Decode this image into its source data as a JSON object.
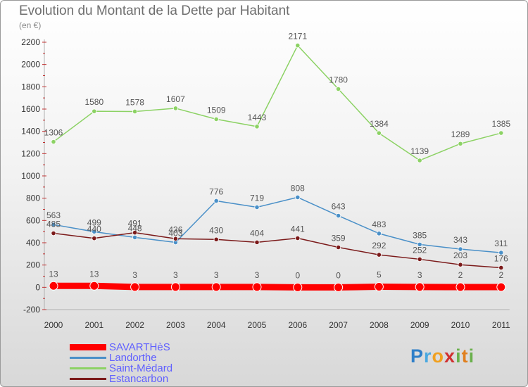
{
  "chart_data": {
    "type": "line",
    "title": "Evolution du Montant de la Dette par Habitant",
    "unit": "(en €)",
    "x": [
      "2000",
      "2001",
      "2002",
      "2003",
      "2004",
      "2005",
      "2006",
      "2007",
      "2008",
      "2009",
      "2010",
      "2011"
    ],
    "yticks": [
      "-200",
      "0",
      "200",
      "400",
      "600",
      "800",
      "1000",
      "1200",
      "1400",
      "1600",
      "1800",
      "2000",
      "2200"
    ],
    "ylim": [
      -200,
      2200
    ],
    "grid": false,
    "legend_position": "bottom-left",
    "series": [
      {
        "name": "SAVARTHèS",
        "color": "#ff0000",
        "values": [
          13,
          13,
          3,
          3,
          3,
          3,
          0,
          0,
          5,
          3,
          2,
          2
        ]
      },
      {
        "name": "Landorthe",
        "color": "#4a90c8",
        "values": [
          563,
          499,
          448,
          403,
          776,
          719,
          808,
          643,
          483,
          385,
          343,
          311
        ]
      },
      {
        "name": "Saint-Médard",
        "color": "#8cd264",
        "values": [
          1306,
          1580,
          1578,
          1607,
          1509,
          1443,
          2171,
          1780,
          1384,
          1139,
          1289,
          1385
        ]
      },
      {
        "name": "Estancarbon",
        "color": "#7b1a1a",
        "values": [
          485,
          440,
          491,
          436,
          430,
          404,
          441,
          359,
          292,
          252,
          203,
          176
        ]
      }
    ]
  },
  "brand": {
    "letters": [
      "P",
      "r",
      "o",
      "x",
      "i",
      "t",
      "i"
    ],
    "colors": [
      "#2f7fc8",
      "#4aa8e0",
      "#f0a020",
      "#d03030",
      "#6ab04c",
      "#e08020",
      "#6ab04c"
    ]
  }
}
